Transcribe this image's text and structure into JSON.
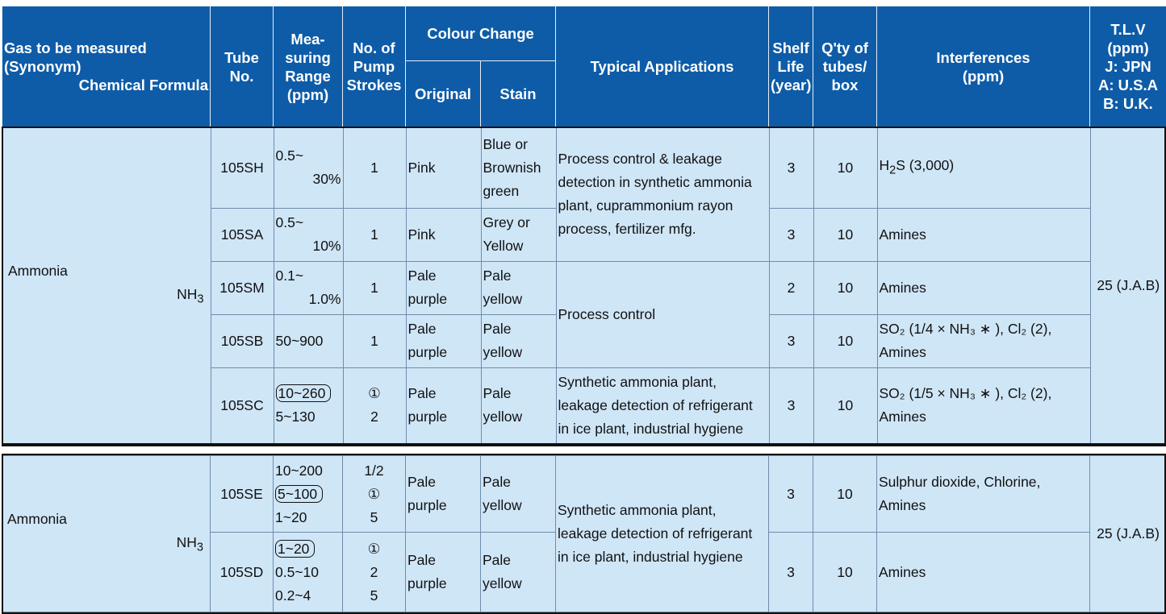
{
  "header": {
    "gas_line1": "Gas to be measured",
    "gas_line2": "(Synonym)",
    "gas_line3": "Chemical Formula",
    "tube": "Tube No.",
    "range": "Mea- suring Range (ppm)",
    "strokes": "No. of Pump Strokes",
    "colour_change": "Colour Change",
    "original": "Original",
    "stain": "Stain",
    "applications": "Typical Applications",
    "shelf": "Shelf Life (year)",
    "qty": "Q'ty of tubes/ box",
    "interferences": "Interferences (ppm)",
    "tlv_line1": "T.L.V",
    "tlv_line2": "(ppm)",
    "tlv_line3": "J: JPN",
    "tlv_line4": "A: U.S.A",
    "tlv_line5": "B: U.K."
  },
  "table1": {
    "gas": "Ammonia",
    "formula": "NH",
    "formula_sub": "3",
    "tlv": "25 (J.A.B)",
    "app_a": "Process control & leakage detection in synthetic ammonia plant, cuprammonium rayon process, fertilizer mfg.",
    "app_b": "Process control",
    "app_c": "Synthetic ammonia plant, leakage detection of refrigerant in ice plant, industrial hygiene",
    "rows": [
      {
        "tube": "105SH",
        "range1": "0.5~",
        "range2": "30%",
        "strokes": "1",
        "original": "Pink",
        "stain": "Blue or Brownish green",
        "shelf": "3",
        "qty": "10"
      },
      {
        "tube": "105SA",
        "range1": "0.5~",
        "range2": "10%",
        "strokes": "1",
        "original": "Pink",
        "stain": "Grey or Yellow",
        "shelf": "3",
        "qty": "10",
        "interf": "Amines"
      },
      {
        "tube": "105SM",
        "range1": "0.1~",
        "range2": "1.0%",
        "strokes": "1",
        "original": "Pale purple",
        "stain": "Pale yellow",
        "shelf": "2",
        "qty": "10",
        "interf": "Amines"
      },
      {
        "tube": "105SB",
        "range1": "50~900",
        "strokes": "1",
        "original": "Pale purple",
        "stain": "Pale yellow",
        "shelf": "3",
        "qty": "10"
      },
      {
        "tube": "105SC",
        "range1": "10~260",
        "range2": "5~130",
        "strokes1": "①",
        "strokes2": "2",
        "original": "Pale purple",
        "stain": "Pale yellow",
        "shelf": "3",
        "qty": "10"
      }
    ],
    "interf_sh": "H",
    "interf_sh_sub": "2",
    "interf_sh_rest": "S (3,000)",
    "interf_sb": "SO₂ (1/4 × NH₃ ∗ ), Cl₂ (2), Amines",
    "interf_sc": "SO₂ (1/5 × NH₃ ∗ ), Cl₂ (2), Amines"
  },
  "table2": {
    "gas": "Ammonia",
    "formula": "NH",
    "formula_sub": "3",
    "tlv": "25 (J.A.B)",
    "app": "Synthetic ammonia plant, leakage detection of refrigerant in ice plant, industrial hygiene",
    "rows": [
      {
        "tube": "105SE",
        "ranges": [
          "10~200",
          "5~100",
          "1~20"
        ],
        "strokes": [
          "1/2",
          "①",
          "5"
        ],
        "original": "Pale purple",
        "stain": "Pale yellow",
        "shelf": "3",
        "qty": "10",
        "interf": "Sulphur dioxide, Chlorine, Amines"
      },
      {
        "tube": "105SD",
        "ranges": [
          "1~20",
          "0.5~10",
          "0.2~4"
        ],
        "strokes": [
          "①",
          "2",
          "5"
        ],
        "original": "Pale purple",
        "stain": "Pale yellow",
        "shelf": "3",
        "qty": "10",
        "interf": "Amines"
      }
    ]
  }
}
